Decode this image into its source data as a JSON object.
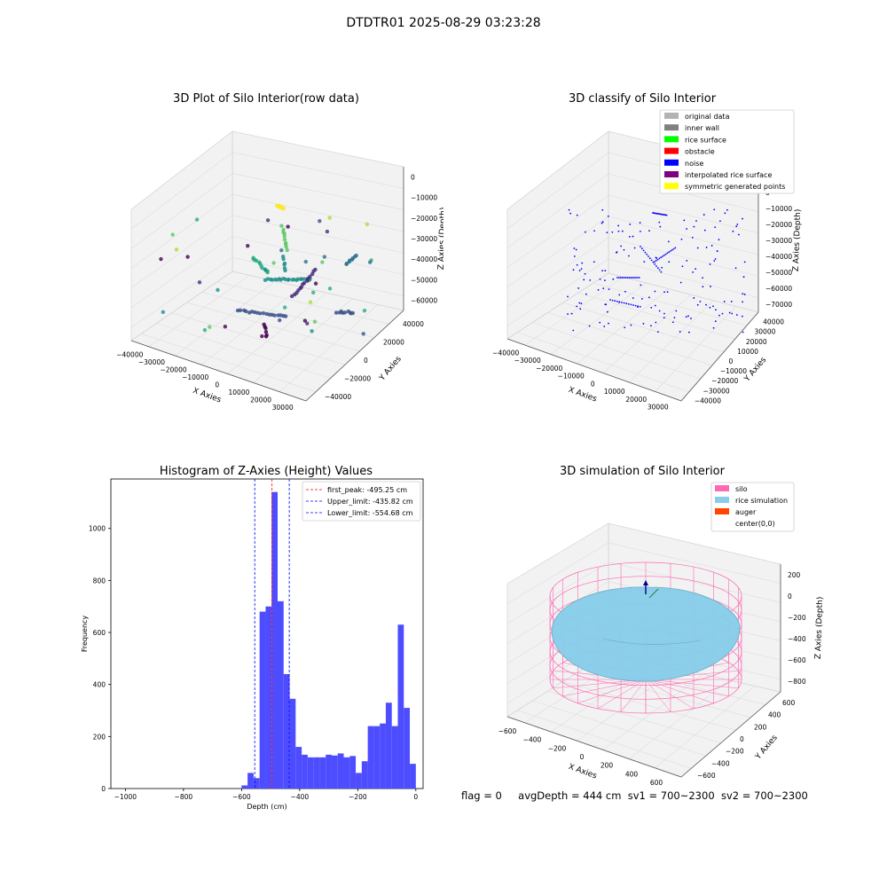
{
  "suptitle": "DTDTR01 2025-08-29 03:23:28",
  "chart_data": [
    {
      "id": "raw",
      "type": "scatter",
      "title": "3D Plot of Silo Interior(row data)",
      "xlabel": "X Axies",
      "ylabel": "Y Axies",
      "zlabel": "Z Axies (Depth)",
      "x_ticks": [
        -40000,
        -30000,
        -20000,
        -10000,
        0,
        10000,
        20000,
        30000
      ],
      "y_ticks": [
        -40000,
        -20000,
        0,
        20000,
        40000
      ],
      "z_ticks": [
        0,
        -10000,
        -20000,
        -30000,
        -40000,
        -50000,
        -60000
      ],
      "colormap": "viridis"
    },
    {
      "id": "classify",
      "type": "scatter",
      "title": "3D classify of Silo Interior",
      "xlabel": "X Axies",
      "ylabel": "Y Axies",
      "zlabel": "Z Axies (Depth)",
      "x_ticks": [
        -40000,
        -30000,
        -20000,
        -10000,
        0,
        10000,
        20000,
        30000
      ],
      "y_ticks": [
        -40000,
        -30000,
        -20000,
        -10000,
        0,
        10000,
        20000,
        30000,
        40000
      ],
      "z_ticks": [
        10000,
        0,
        -10000,
        -20000,
        -30000,
        -40000,
        -50000,
        -60000,
        -70000
      ],
      "legend_position": "top-right",
      "legend": [
        {
          "label": "original data",
          "color": "#b3b3b3"
        },
        {
          "label": "inner wall",
          "color": "#808080"
        },
        {
          "label": "rice surface",
          "color": "#00ff00"
        },
        {
          "label": "obstacle",
          "color": "#ff0000"
        },
        {
          "label": "noise",
          "color": "#0000ff"
        },
        {
          "label": "interpolated rice surface",
          "color": "#800080"
        },
        {
          "label": "symmetric generated points",
          "color": "#ffff00"
        }
      ]
    },
    {
      "id": "hist",
      "type": "bar",
      "title": "Histogram of Z-Axies (Height) Values",
      "xlabel": "Depth (cm)",
      "ylabel": "Frequency",
      "xlim": [
        -1050,
        25
      ],
      "ylim": [
        0,
        1190
      ],
      "x_ticks": [
        -1000,
        -800,
        -600,
        -400,
        -200,
        0
      ],
      "y_ticks": [
        0,
        200,
        400,
        600,
        800,
        1000
      ],
      "bar_color": "#4d4dff",
      "bin_width": 12,
      "bins": [
        {
          "x0": -600,
          "count": 12
        },
        {
          "x0": -588,
          "count": 60
        },
        {
          "x0": -576,
          "count": 40
        },
        {
          "x0": -564,
          "count": 680
        },
        {
          "x0": -552,
          "count": 700
        },
        {
          "x0": -540,
          "count": 1140
        },
        {
          "x0": -528,
          "count": 720
        },
        {
          "x0": -516,
          "count": 440
        },
        {
          "x0": -504,
          "count": 345
        },
        {
          "x0": -492,
          "count": 160
        },
        {
          "x0": -480,
          "count": 130
        },
        {
          "x0": -468,
          "count": 120
        },
        {
          "x0": -456,
          "count": 120
        },
        {
          "x0": -444,
          "count": 120
        },
        {
          "x0": -432,
          "count": 130
        },
        {
          "x0": -420,
          "count": 127
        },
        {
          "x0": -408,
          "count": 135
        },
        {
          "x0": -396,
          "count": 120
        },
        {
          "x0": -384,
          "count": 125
        },
        {
          "x0": -372,
          "count": 60
        },
        {
          "x0": -360,
          "count": 105
        },
        {
          "x0": -348,
          "count": 240
        },
        {
          "x0": -336,
          "count": 240
        },
        {
          "x0": -324,
          "count": 250
        },
        {
          "x0": -312,
          "count": 330
        },
        {
          "x0": -300,
          "count": 240
        },
        {
          "x0": -288,
          "count": 630
        },
        {
          "x0": -276,
          "count": 310
        },
        {
          "x0": -264,
          "count": 95
        }
      ],
      "vlines": [
        {
          "x": -495.25,
          "label": "first_peak: -495.25 cm",
          "color": "#ff0000"
        },
        {
          "x": -435.82,
          "label": "Upper_limit: -435.82 cm",
          "color": "#0000ff"
        },
        {
          "x": -554.68,
          "label": "Lower_limit: -554.68 cm",
          "color": "#0000ff"
        }
      ],
      "legend_position": "top-right"
    },
    {
      "id": "sim",
      "type": "scatter",
      "title": "3D simulation of Silo Interior",
      "xlabel": "X Axies",
      "ylabel": "Y Axies",
      "zlabel": "Z Axies (Depth)",
      "x_ticks": [
        -600,
        -400,
        -200,
        0,
        200,
        400,
        600
      ],
      "y_ticks": [
        -600,
        -400,
        -200,
        0,
        200,
        400,
        600
      ],
      "z_ticks": [
        200,
        0,
        -200,
        -400,
        -600,
        -800
      ],
      "legend_position": "top-right",
      "legend": [
        {
          "label": "silo",
          "color": "#ff69b4"
        },
        {
          "label": "rice simulation",
          "color": "#87ceeb"
        },
        {
          "label": "auger",
          "color": "#ff4500"
        },
        {
          "label": "center(0,0)",
          "color": "#ffffff"
        }
      ]
    }
  ],
  "footer": {
    "flag": "flag = 0",
    "avg": "avgDepth = 444 cm",
    "sv1": "sv1 = 700~2300",
    "sv2": "sv2 = 700~2300"
  }
}
